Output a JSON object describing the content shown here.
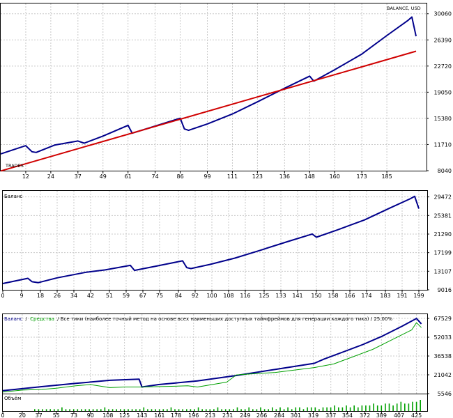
{
  "colors": {
    "balance": "#00008b",
    "equity": "#00a000",
    "trend": "#d00000",
    "grid": "#c8c8c8",
    "volume": "#00a000",
    "frame": "#000000"
  },
  "chart_data": [
    {
      "type": "line",
      "title": "BALANCE, USD",
      "label": "TRADES",
      "xticks": [
        "12",
        "24",
        "37",
        "49",
        "61",
        "74",
        "86",
        "99",
        "111",
        "123",
        "136",
        "148",
        "160",
        "173",
        "185"
      ],
      "yticks": [
        "30060",
        "26390",
        "22720",
        "19050",
        "15380",
        "11710",
        "8040"
      ],
      "xlim": [
        0,
        204
      ],
      "ylim": [
        8040,
        31500
      ],
      "series": [
        {
          "name": "balance",
          "x": [
            0,
            12,
            15,
            17,
            26,
            37,
            40,
            49,
            61,
            63,
            74,
            86,
            88,
            90,
            99,
            111,
            123,
            136,
            148,
            150,
            160,
            173,
            185,
            195,
            197,
            199
          ],
          "y": [
            10400,
            11550,
            10700,
            10600,
            11650,
            12200,
            11900,
            12900,
            14400,
            13300,
            14300,
            15400,
            13900,
            13700,
            14600,
            16000,
            17700,
            19600,
            21300,
            20600,
            22200,
            24400,
            27000,
            29100,
            29600,
            26900
          ]
        },
        {
          "name": "trend",
          "x": [
            0,
            199
          ],
          "y": [
            8000,
            24800
          ]
        }
      ]
    },
    {
      "type": "line",
      "title": "Баланс",
      "xticks": [
        "0",
        "9",
        "18",
        "26",
        "34",
        "42",
        "51",
        "59",
        "67",
        "75",
        "84",
        "92",
        "100",
        "108",
        "116",
        "125",
        "133",
        "141",
        "150",
        "158",
        "166",
        "174",
        "183",
        "191",
        "199"
      ],
      "yticks": [
        "29472",
        "25381",
        "21290",
        "17199",
        "13107",
        "9016"
      ],
      "xlim": [
        0,
        203
      ],
      "ylim": [
        9016,
        30800
      ],
      "series": [
        {
          "name": "balance",
          "x": [
            0,
            12,
            14,
            17,
            26,
            40,
            49,
            61,
            63,
            74,
            86,
            88,
            90,
            99,
            111,
            123,
            136,
            148,
            150,
            160,
            173,
            185,
            195,
            197,
            199
          ],
          "y": [
            10400,
            11550,
            10800,
            10600,
            11650,
            12900,
            13400,
            14400,
            13300,
            14300,
            15400,
            13900,
            13700,
            14600,
            16000,
            17700,
            19600,
            21300,
            20600,
            22200,
            24400,
            27000,
            29100,
            29600,
            26900
          ]
        }
      ]
    },
    {
      "type": "line",
      "title": "Баланс / Средства / Все тики (наиболее точный метод на основе всех наименьших доступных таймфреймов для генерации каждого тика) / 25.00%",
      "legend": {
        "balance": "Баланс",
        "sep1": "/",
        "equity": "Средства",
        "rest": "/ Все тики (наиболее точный метод на основе всех наименьших доступных таймфреймов для генерации каждого тика) / 25.00%"
      },
      "xticks": [
        "0",
        "20",
        "37",
        "55",
        "73",
        "90",
        "108",
        "125",
        "143",
        "161",
        "178",
        "196",
        "213",
        "231",
        "249",
        "266",
        "284",
        "301",
        "319",
        "337",
        "354",
        "372",
        "389",
        "407",
        "425"
      ],
      "yticks": [
        "67529",
        "52033",
        "36538",
        "21042",
        "5546"
      ],
      "xlim": [
        0,
        436
      ],
      "ylim": [
        5546,
        71000
      ],
      "series": [
        {
          "name": "balance",
          "x": [
            0,
            40,
            75,
            110,
            140,
            143,
            160,
            200,
            240,
            280,
            320,
            330,
            350,
            370,
            390,
            410,
            425,
            430
          ],
          "y": [
            8000,
            11300,
            14000,
            16500,
            17500,
            11000,
            13000,
            16000,
            20500,
            25500,
            30500,
            34000,
            40000,
            46000,
            53000,
            61000,
            67500,
            63000
          ]
        },
        {
          "name": "equity",
          "x": [
            0,
            20,
            40,
            55,
            75,
            90,
            110,
            125,
            143,
            170,
            190,
            200,
            230,
            240,
            260,
            280,
            300,
            320,
            340,
            360,
            380,
            400,
            420,
            425,
            430
          ],
          "y": [
            6800,
            8500,
            9000,
            10000,
            12000,
            13000,
            10500,
            11000,
            11000,
            11500,
            12000,
            11000,
            15000,
            21000,
            22000,
            23000,
            25000,
            27000,
            30000,
            36000,
            42000,
            50000,
            58000,
            64000,
            60000
          ]
        }
      ]
    },
    {
      "type": "bar",
      "title": "Объём",
      "xlim": [
        0,
        436
      ],
      "values": [
        1,
        1,
        1,
        1,
        1,
        1,
        1,
        2,
        1,
        1,
        1,
        1,
        1,
        1,
        1,
        1,
        1,
        1,
        2,
        1,
        1,
        1,
        1,
        1,
        1,
        1,
        1,
        1,
        2,
        1,
        1,
        1,
        1,
        1,
        1,
        2,
        1,
        1,
        1,
        1,
        1,
        1,
        2,
        1,
        1,
        1,
        1,
        2,
        1,
        1,
        1,
        1,
        2,
        1,
        1,
        2,
        1,
        1,
        2,
        1,
        1,
        2,
        1,
        2,
        1,
        2,
        1,
        2,
        2,
        1,
        2,
        2,
        2,
        1,
        2,
        2,
        2,
        3,
        2,
        2,
        3,
        2,
        3,
        2,
        3,
        3,
        3,
        4,
        3,
        3,
        4,
        4,
        3,
        4,
        5,
        4,
        4,
        5,
        5,
        6
      ]
    }
  ]
}
